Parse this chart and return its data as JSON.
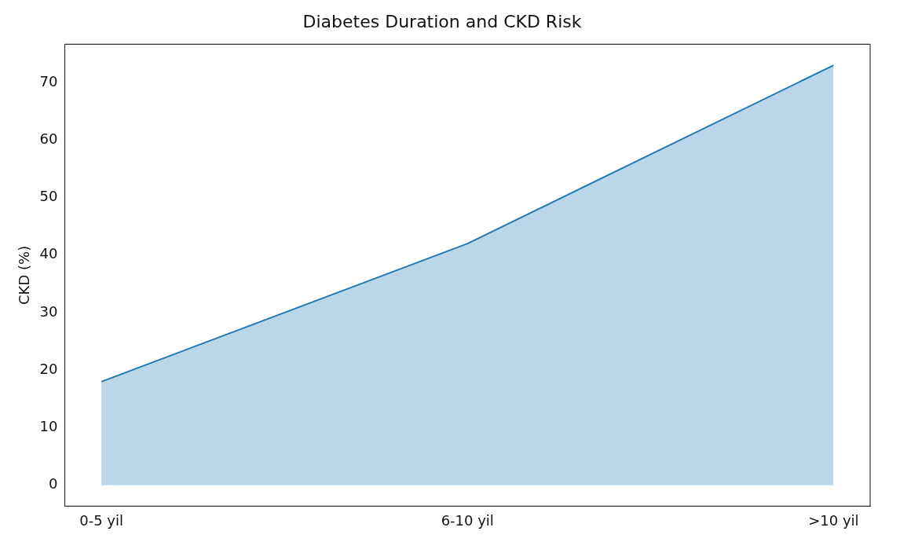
{
  "chart_data": {
    "type": "area",
    "title": "Diabetes Duration and CKD Risk",
    "ylabel": "CKD (%)",
    "categories": [
      "0-5 yil",
      "6-10 yil",
      ">10 yil"
    ],
    "series": [
      {
        "color": "#1f77b4",
        "values": [
          18,
          42,
          73
        ]
      }
    ],
    "ylim": [
      -3.65,
      76.65
    ],
    "yticks": [
      0,
      10,
      20,
      30,
      40,
      50,
      60,
      70
    ],
    "grid": false,
    "legend": false
  }
}
